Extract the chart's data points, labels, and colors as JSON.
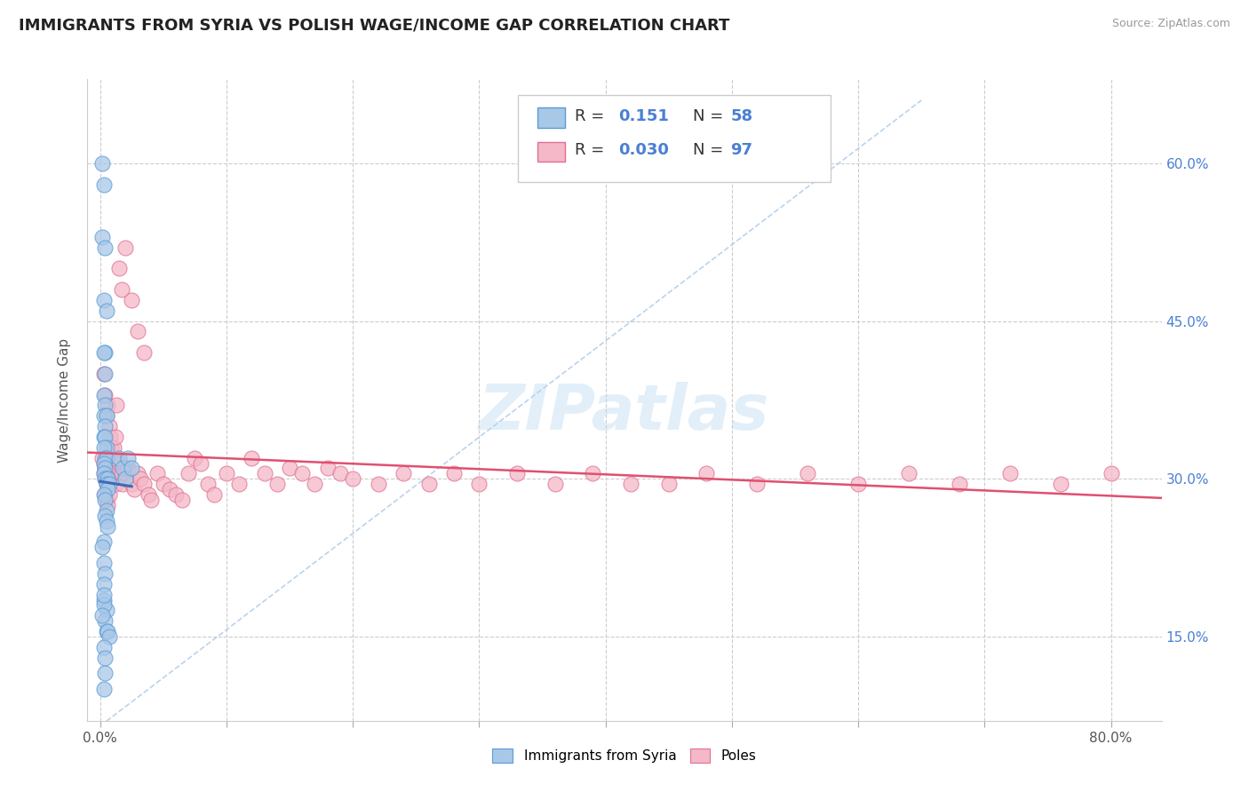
{
  "title": "IMMIGRANTS FROM SYRIA VS POLISH WAGE/INCOME GAP CORRELATION CHART",
  "source_text": "Source: ZipAtlas.com",
  "ylabel": "Wage/Income Gap",
  "y_ticks": [
    0.15,
    0.3,
    0.45,
    0.6
  ],
  "y_tick_labels": [
    "15.0%",
    "30.0%",
    "45.0%",
    "60.0%"
  ],
  "x_ticks": [
    0.0,
    0.1,
    0.2,
    0.3,
    0.4,
    0.5,
    0.6,
    0.7,
    0.8
  ],
  "xlim": [
    -0.01,
    0.84
  ],
  "ylim": [
    0.07,
    0.68
  ],
  "color_blue": "#a8c8e8",
  "color_blue_edge": "#5b9bd5",
  "color_blue_line": "#3b6cb5",
  "color_pink": "#f4b8c8",
  "color_pink_edge": "#e07090",
  "color_pink_line": "#e05070",
  "watermark": "ZIPatlas",
  "background_color": "#ffffff",
  "grid_color": "#cccccc",
  "blue_scatter_x": [
    0.002,
    0.003,
    0.002,
    0.004,
    0.003,
    0.005,
    0.004,
    0.003,
    0.004,
    0.003,
    0.004,
    0.003,
    0.005,
    0.004,
    0.003,
    0.004,
    0.005,
    0.003,
    0.004,
    0.005,
    0.003,
    0.004,
    0.003,
    0.005,
    0.004,
    0.006,
    0.005,
    0.007,
    0.006,
    0.003,
    0.004,
    0.005,
    0.004,
    0.005,
    0.006,
    0.003,
    0.002,
    0.003,
    0.004,
    0.003,
    0.003,
    0.005,
    0.004,
    0.005,
    0.006,
    0.007,
    0.003,
    0.004,
    0.015,
    0.018,
    0.02,
    0.022,
    0.025,
    0.003,
    0.004,
    0.003,
    0.002,
    0.003
  ],
  "blue_scatter_y": [
    0.6,
    0.58,
    0.53,
    0.52,
    0.47,
    0.46,
    0.42,
    0.42,
    0.4,
    0.38,
    0.37,
    0.36,
    0.36,
    0.35,
    0.34,
    0.34,
    0.33,
    0.33,
    0.32,
    0.32,
    0.315,
    0.31,
    0.305,
    0.3,
    0.3,
    0.3,
    0.295,
    0.295,
    0.29,
    0.285,
    0.28,
    0.27,
    0.265,
    0.26,
    0.255,
    0.24,
    0.235,
    0.22,
    0.21,
    0.2,
    0.185,
    0.175,
    0.165,
    0.155,
    0.155,
    0.15,
    0.14,
    0.13,
    0.32,
    0.31,
    0.3,
    0.32,
    0.31,
    0.1,
    0.115,
    0.18,
    0.17,
    0.19
  ],
  "pink_scatter_x": [
    0.002,
    0.003,
    0.004,
    0.003,
    0.004,
    0.005,
    0.004,
    0.005,
    0.006,
    0.005,
    0.006,
    0.007,
    0.006,
    0.007,
    0.008,
    0.008,
    0.009,
    0.01,
    0.01,
    0.011,
    0.012,
    0.012,
    0.013,
    0.014,
    0.015,
    0.016,
    0.017,
    0.018,
    0.02,
    0.02,
    0.022,
    0.025,
    0.027,
    0.03,
    0.032,
    0.035,
    0.038,
    0.04,
    0.045,
    0.05,
    0.055,
    0.06,
    0.065,
    0.07,
    0.075,
    0.08,
    0.085,
    0.09,
    0.1,
    0.11,
    0.12,
    0.13,
    0.14,
    0.15,
    0.16,
    0.17,
    0.18,
    0.19,
    0.2,
    0.22,
    0.24,
    0.26,
    0.28,
    0.3,
    0.33,
    0.36,
    0.39,
    0.42,
    0.45,
    0.48,
    0.52,
    0.56,
    0.6,
    0.64,
    0.68,
    0.72,
    0.76,
    0.8,
    0.003,
    0.004,
    0.005,
    0.006,
    0.007,
    0.008,
    0.009,
    0.01,
    0.011,
    0.012,
    0.013,
    0.015,
    0.017,
    0.02,
    0.025,
    0.03,
    0.035
  ],
  "pink_scatter_y": [
    0.32,
    0.315,
    0.31,
    0.305,
    0.3,
    0.295,
    0.285,
    0.28,
    0.275,
    0.3,
    0.295,
    0.285,
    0.32,
    0.31,
    0.305,
    0.315,
    0.305,
    0.3,
    0.32,
    0.31,
    0.305,
    0.295,
    0.32,
    0.315,
    0.31,
    0.315,
    0.305,
    0.295,
    0.31,
    0.305,
    0.31,
    0.295,
    0.29,
    0.305,
    0.3,
    0.295,
    0.285,
    0.28,
    0.305,
    0.295,
    0.29,
    0.285,
    0.28,
    0.305,
    0.32,
    0.315,
    0.295,
    0.285,
    0.305,
    0.295,
    0.32,
    0.305,
    0.295,
    0.31,
    0.305,
    0.295,
    0.31,
    0.305,
    0.3,
    0.295,
    0.305,
    0.295,
    0.305,
    0.295,
    0.305,
    0.295,
    0.305,
    0.295,
    0.295,
    0.305,
    0.295,
    0.305,
    0.295,
    0.305,
    0.295,
    0.305,
    0.295,
    0.305,
    0.4,
    0.38,
    0.36,
    0.37,
    0.35,
    0.34,
    0.33,
    0.32,
    0.33,
    0.34,
    0.37,
    0.5,
    0.48,
    0.52,
    0.47,
    0.44,
    0.42
  ]
}
